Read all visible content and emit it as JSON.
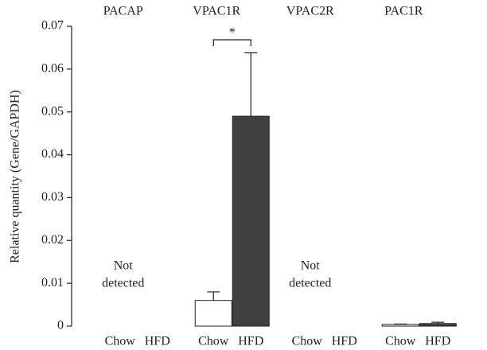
{
  "chart_data": {
    "type": "bar",
    "y_label": "Relative quantity (Gene/GAPDH)",
    "groups": [
      "PACAP",
      "VPAC1R",
      "VPAC2R",
      "PAC1R"
    ],
    "series": [
      {
        "name": "Chow",
        "color": "#ffffff",
        "values": [
          null,
          0.006,
          null,
          0.0004
        ],
        "errors": [
          null,
          0.002,
          null,
          0.0001
        ]
      },
      {
        "name": "HFD",
        "color": "#404040",
        "values": [
          null,
          0.049,
          null,
          0.0006
        ],
        "errors": [
          null,
          0.0148,
          null,
          0.0003
        ]
      }
    ],
    "notes": [
      [
        "Not",
        "detected"
      ],
      null,
      [
        "Not",
        "detected"
      ],
      null
    ],
    "significance": [
      null,
      "*",
      null,
      null
    ],
    "ylim": [
      0,
      0.07
    ],
    "yticks": [
      0,
      0.01,
      0.02,
      0.03,
      0.04,
      0.05,
      0.06,
      0.07
    ]
  }
}
